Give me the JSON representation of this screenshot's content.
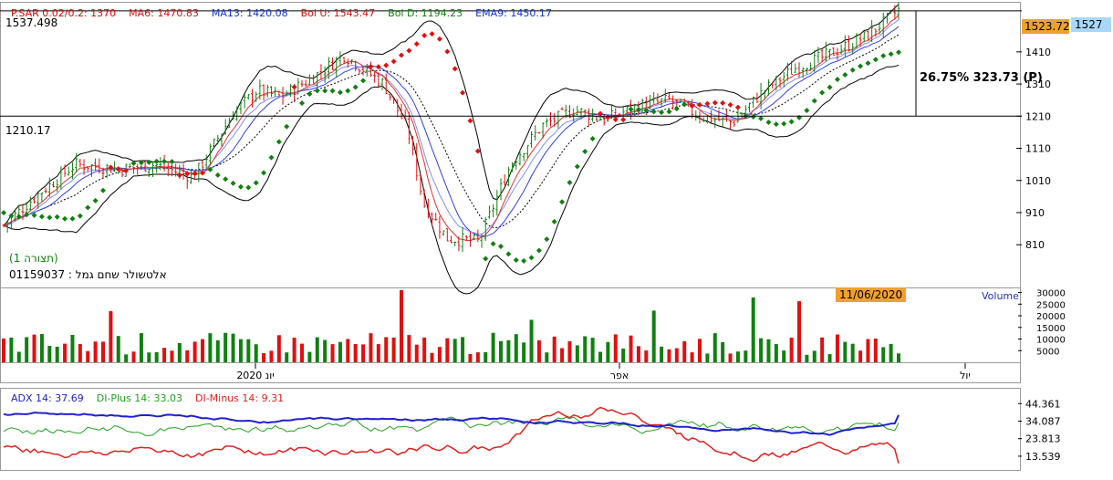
{
  "indicators_top": [
    {
      "text": "P.SAR 0.02/0.2: 1370",
      "color": "#e00000"
    },
    {
      "text": "MA6: 1470.83",
      "color": "#d01010"
    },
    {
      "text": "MA13: 1420.08",
      "color": "#1030d0"
    },
    {
      "text": "Bol U: 1543.47",
      "color": "#d01010"
    },
    {
      "text": "Bol D: 1194.23",
      "color": "#108010"
    },
    {
      "text": "EMA9: 1450.17",
      "color": "#1030d0"
    }
  ],
  "indicators_bottom": [
    {
      "text": "ADX 14: 37.69",
      "color": "#2020d0"
    },
    {
      "text": "DI-Plus 14: 33.03",
      "color": "#20a020"
    },
    {
      "text": "DI-Minus 14: 9.31",
      "color": "#e02020"
    }
  ],
  "hline_labels": {
    "high": "1537.498",
    "low": "1210.17"
  },
  "price_badges": {
    "last": "1523.72",
    "current": "1527"
  },
  "change_text": "26.75% 323.73 (P)",
  "ticker": {
    "name": "אלטשולר שחם גמל : 01159037",
    "yield_text": "(תצורה 1)"
  },
  "date_badge": "11/06/2020",
  "volume_label": "Volume",
  "colors": {
    "up": "#108010",
    "down": "#e01010",
    "badge_orange": "#f0a030",
    "badge_blue": "#a8d8f8"
  },
  "chart_data": [
    {
      "type": "candlestick",
      "name": "price",
      "y_ticks": [
        810,
        910,
        1010,
        1110,
        1210,
        1310,
        1410
      ],
      "ylim": [
        680,
        1560
      ],
      "x_ticks": [
        "יונ 2020",
        "אפר",
        "יול"
      ],
      "start": 870,
      "low": 790,
      "high": 1545,
      "last": 1523.72,
      "hlines": [
        1537.498,
        1210.17
      ],
      "overlays": [
        "Bollinger",
        "MA6",
        "MA13",
        "EMA9",
        "P.SAR"
      ]
    },
    {
      "type": "bar",
      "name": "Volume",
      "y_ticks": [
        5000,
        10000,
        15000,
        20000,
        25000,
        30000
      ],
      "ylim": [
        0,
        31000
      ],
      "max": 31000,
      "typical": 8000
    },
    {
      "type": "line",
      "name": "ADX",
      "y_ticks": [
        13.539,
        23.813,
        34.087,
        44.361
      ],
      "ylim": [
        6,
        52
      ],
      "series": [
        {
          "name": "ADX 14",
          "last": 37.69
        },
        {
          "name": "DI-Plus 14",
          "last": 33.03
        },
        {
          "name": "DI-Minus 14",
          "last": 9.31
        }
      ]
    }
  ]
}
